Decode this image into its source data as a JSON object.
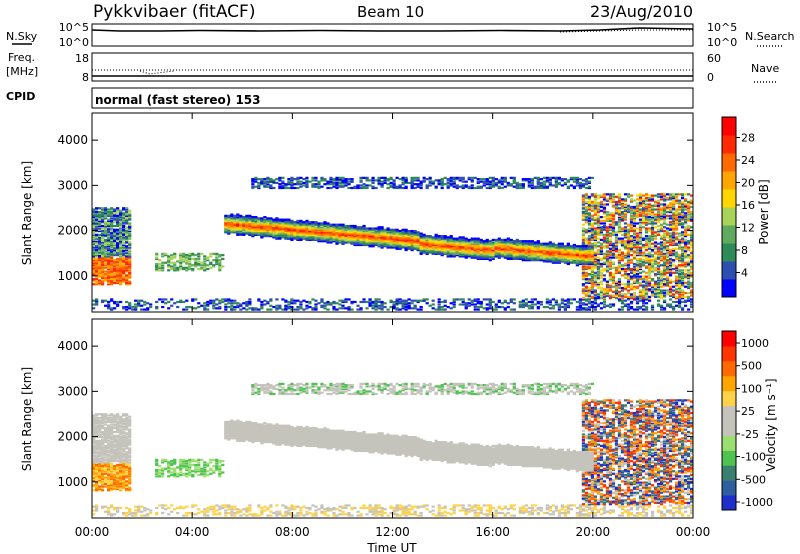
{
  "header": {
    "title": "Pykkvibaer (fitACF)",
    "beam": "Beam 10",
    "date": "23/Aug/2010"
  },
  "panels": {
    "nsky": {
      "label": "N.Sky",
      "left_ticks": [
        "10^5",
        "10^0"
      ],
      "right_ticks": [
        "10^5",
        "10^0"
      ],
      "right_label": "N.Search"
    },
    "freq": {
      "label_line1": "Freq.",
      "label_line2": "[MHz]",
      "left_ticks": [
        "18",
        "8"
      ],
      "right_ticks": [
        "60",
        "0"
      ],
      "right_label": "Nave"
    },
    "cpid": {
      "label": "CPID",
      "text": "normal (fast stereo) 153"
    }
  },
  "chart_data": [
    {
      "type": "heatmap",
      "name": "power",
      "ylabel": "Slant Range [km]",
      "xlabel": "",
      "x_ticks": [
        "00:00",
        "04:00",
        "08:00",
        "12:00",
        "16:00",
        "20:00",
        "00:00"
      ],
      "x_tick_hours": [
        0,
        4,
        8,
        12,
        16,
        20,
        24
      ],
      "y_ticks": [
        1000,
        2000,
        3000,
        4000
      ],
      "ylim": [
        200,
        4600
      ],
      "xlim_hours": [
        0,
        24
      ],
      "colorbar": {
        "label": "Power [dB]",
        "ticks": [
          "4",
          "8",
          "12",
          "16",
          "20",
          "24",
          "28"
        ],
        "colors": [
          "#0000ff",
          "#2f4fb0",
          "#2e8b57",
          "#5faa5f",
          "#a8d35a",
          "#ffd700",
          "#ffa500",
          "#ff6a00",
          "#ff2a00",
          "#ff0000"
        ]
      },
      "features": [
        {
          "feature": "main band",
          "t_start": 5.2,
          "t_end": 19.5,
          "range_start": 2150,
          "range_end": 1450,
          "level": "high"
        },
        {
          "feature": "upper scatter",
          "t_start": 6.2,
          "t_end": 20.0,
          "range": 3000,
          "level": "low"
        },
        {
          "feature": "near range",
          "t_start": 0.0,
          "t_end": 24.0,
          "range": 400,
          "level": "low"
        }
      ]
    },
    {
      "type": "heatmap",
      "name": "velocity",
      "ylabel": "Slant Range [km]",
      "xlabel": "Time UT",
      "x_ticks": [
        "00:00",
        "04:00",
        "08:00",
        "12:00",
        "16:00",
        "20:00",
        "00:00"
      ],
      "x_tick_hours": [
        0,
        4,
        8,
        12,
        16,
        20,
        24
      ],
      "y_ticks": [
        1000,
        2000,
        3000,
        4000
      ],
      "ylim": [
        200,
        4600
      ],
      "xlim_hours": [
        0,
        24
      ],
      "colorbar": {
        "label": "Velocity [m s⁻¹]",
        "ticks": [
          "1000",
          "500",
          "100",
          "25",
          "-25",
          "-100",
          "-500",
          "-1000"
        ],
        "colors": [
          "#1f2fcc",
          "#2f5f9f",
          "#3a7f6f",
          "#4fc34f",
          "#9adf6f",
          "#c4c4bc",
          "#c4c4bc",
          "#ffd24a",
          "#ffa500",
          "#ff6a00",
          "#ff3500",
          "#ff0000"
        ]
      }
    }
  ]
}
